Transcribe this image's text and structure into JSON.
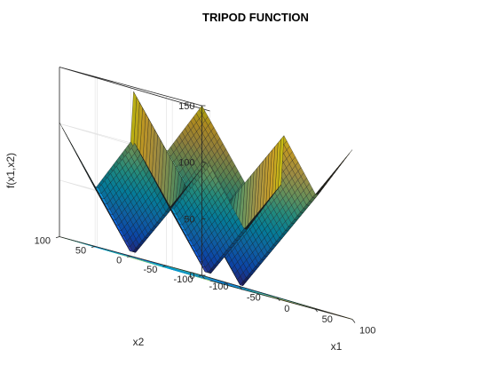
{
  "chart_data": {
    "type": "surface",
    "title": "TRIPOD FUNCTION",
    "xlabel": "x1",
    "ylabel": "x2",
    "zlabel": "f(x1,x2)",
    "xlim": [
      -100,
      100
    ],
    "ylim": [
      -100,
      100
    ],
    "zlim": [
      0,
      150
    ],
    "xticks": [
      -100,
      -50,
      0,
      50,
      100
    ],
    "yticks": [
      -100,
      -50,
      0,
      50,
      100
    ],
    "zticks": [
      0,
      50,
      100,
      150
    ],
    "xtick_labels": [
      "-100",
      "-50",
      "0",
      "50",
      "100"
    ],
    "ytick_labels": [
      "-100",
      "-50",
      "0",
      "50",
      "100"
    ],
    "ztick_labels": [
      "0",
      "50",
      "100",
      "150"
    ],
    "grid": true,
    "colormap": "parula",
    "colormap_colors": [
      "#352a87",
      "#0f5cdd",
      "#1481d6",
      "#06a4ca",
      "#2eb7a4",
      "#87bf77",
      "#d1bb59",
      "#fec832",
      "#f9fb0e"
    ],
    "contour_projection_on_floor": true,
    "function": "p(x2)*(1+p(x1)) + |x1 + 50*p(x2)*(1-2*p(x1))| + |x2 + 50*(1-2*p(x2))|, p(t) = 1 if t >= 0 else 0"
  }
}
